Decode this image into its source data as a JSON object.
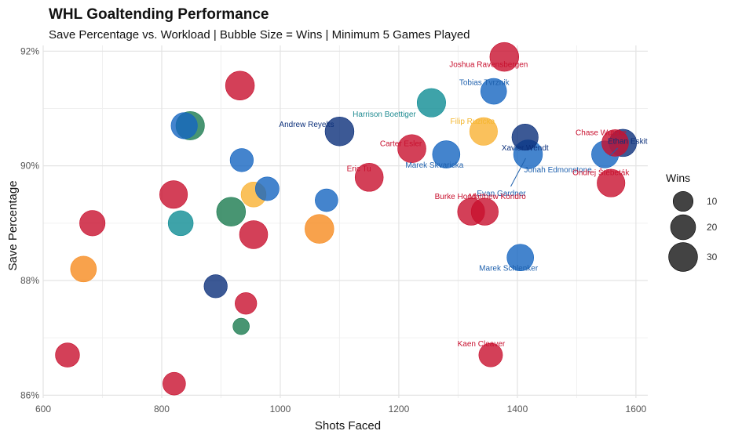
{
  "chart_data": {
    "type": "scatter",
    "title": "WHL Goaltending Performance",
    "subtitle": "Save Percentage vs. Workload | Bubble Size = Wins | Minimum 5 Games Played",
    "xlabel": "Shots Faced",
    "ylabel": "Save Percentage",
    "xlim": [
      600,
      1620
    ],
    "ylim": [
      85.95,
      92.1
    ],
    "x_ticks": [
      600,
      800,
      1000,
      1200,
      1400,
      1600
    ],
    "y_ticks": [
      86,
      88,
      90,
      92
    ],
    "y_tick_labels": [
      "86%",
      "88%",
      "90%",
      "92%"
    ],
    "grid": true,
    "legend": {
      "title": "Wins",
      "position": "right",
      "entries": [
        {
          "label": "10",
          "value": 10
        },
        {
          "label": "20",
          "value": 20
        },
        {
          "label": "30",
          "value": 30
        }
      ]
    },
    "points": [
      {
        "x": 1378,
        "y": 91.9,
        "wins": 30,
        "color": "#C8102E",
        "label": "Joshua Ravensbergen"
      },
      {
        "x": 1360,
        "y": 91.3,
        "wins": 22,
        "color": "#1565C0",
        "label": "Tobias Tvrznik"
      },
      {
        "x": 1255,
        "y": 91.1,
        "wins": 29,
        "color": "#0E8C94",
        "label": "Harrison Boettiger"
      },
      {
        "x": 1343,
        "y": 90.6,
        "wins": 27,
        "color": "#F9B233",
        "label": "Filip Ruzicka"
      },
      {
        "x": 1100,
        "y": 90.6,
        "wins": 30,
        "color": "#0B2F7A",
        "label": "Andrew Reyelts"
      },
      {
        "x": 1222,
        "y": 90.3,
        "wins": 28,
        "color": "#C8102E",
        "label": "Carter Esler"
      },
      {
        "x": 1280,
        "y": 90.2,
        "wins": 26,
        "color": "#1565C0",
        "label": "Marek Skvaricka"
      },
      {
        "x": 1413,
        "y": 90.5,
        "wins": 23,
        "color": "#0B2F7A",
        "label": "Xavier Wendt"
      },
      {
        "x": 1418,
        "y": 90.2,
        "wins": 30,
        "color": "#1565C0",
        "label": "Evan Gardner"
      },
      {
        "x": 1565,
        "y": 90.4,
        "wins": 24,
        "color": "#C8102E",
        "label": "Chase Wutzke"
      },
      {
        "x": 1578,
        "y": 90.4,
        "wins": 26,
        "color": "#0B2F7A",
        "label": "Ethan Eskit"
      },
      {
        "x": 1548,
        "y": 90.2,
        "wins": 25,
        "color": "#1565C0",
        "label": "Jonah Edmonstone"
      },
      {
        "x": 1150,
        "y": 89.8,
        "wins": 28,
        "color": "#C8102E",
        "label": "Eric Tu"
      },
      {
        "x": 1558,
        "y": 89.7,
        "wins": 27,
        "color": "#C8102E",
        "label": "Ondrej Štěbeták"
      },
      {
        "x": 1322,
        "y": 89.2,
        "wins": 25,
        "color": "#C8102E",
        "label": "Burke Hood"
      },
      {
        "x": 1345,
        "y": 89.2,
        "wins": 25,
        "color": "#C8102E",
        "label": "Matthew Kondro"
      },
      {
        "x": 1405,
        "y": 88.4,
        "wins": 24,
        "color": "#1565C0",
        "label": "Marek Schlenker"
      },
      {
        "x": 1355,
        "y": 86.7,
        "wins": 17,
        "color": "#C8102E",
        "label": "Kaen Cleaver"
      },
      {
        "x": 932,
        "y": 91.4,
        "wins": 30,
        "color": "#C8102E",
        "label": ""
      },
      {
        "x": 848,
        "y": 90.7,
        "wins": 29,
        "color": "#1A7A4F",
        "label": ""
      },
      {
        "x": 838,
        "y": 90.7,
        "wins": 23,
        "color": "#1565C0",
        "label": ""
      },
      {
        "x": 935,
        "y": 90.1,
        "wins": 16,
        "color": "#1565C0",
        "label": ""
      },
      {
        "x": 978,
        "y": 89.6,
        "wins": 17,
        "color": "#1565C0",
        "label": ""
      },
      {
        "x": 955,
        "y": 89.5,
        "wins": 20,
        "color": "#F9B233",
        "label": ""
      },
      {
        "x": 820,
        "y": 89.5,
        "wins": 27,
        "color": "#C8102E",
        "label": ""
      },
      {
        "x": 1078,
        "y": 89.4,
        "wins": 15,
        "color": "#1565C0",
        "label": ""
      },
      {
        "x": 917,
        "y": 89.2,
        "wins": 30,
        "color": "#1A7A4F",
        "label": ""
      },
      {
        "x": 832,
        "y": 89.0,
        "wins": 20,
        "color": "#0E8C94",
        "label": ""
      },
      {
        "x": 683,
        "y": 89.0,
        "wins": 21,
        "color": "#C8102E",
        "label": ""
      },
      {
        "x": 1066,
        "y": 88.9,
        "wins": 30,
        "color": "#F68B1F",
        "label": ""
      },
      {
        "x": 955,
        "y": 88.8,
        "wins": 28,
        "color": "#C8102E",
        "label": ""
      },
      {
        "x": 668,
        "y": 88.2,
        "wins": 22,
        "color": "#F68B1F",
        "label": ""
      },
      {
        "x": 891,
        "y": 87.9,
        "wins": 16,
        "color": "#0B2F7A",
        "label": ""
      },
      {
        "x": 942,
        "y": 87.6,
        "wins": 13,
        "color": "#C8102E",
        "label": ""
      },
      {
        "x": 934,
        "y": 87.2,
        "wins": 5,
        "color": "#1A7A4F",
        "label": ""
      },
      {
        "x": 641,
        "y": 86.7,
        "wins": 18,
        "color": "#C8102E",
        "label": ""
      },
      {
        "x": 821,
        "y": 86.2,
        "wins": 15,
        "color": "#C8102E",
        "label": ""
      }
    ]
  }
}
